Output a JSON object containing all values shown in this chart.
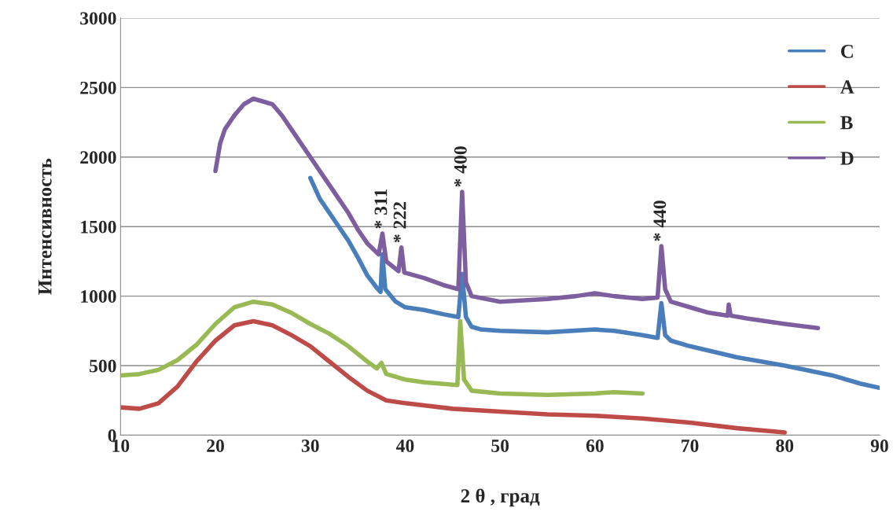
{
  "chart_data": {
    "type": "line",
    "xlabel": "2 θ , град",
    "ylabel": "Интенсивность",
    "xlim": [
      10,
      90
    ],
    "xticks": [
      10,
      20,
      30,
      40,
      50,
      60,
      70,
      80,
      90
    ],
    "ylim": [
      0,
      3000
    ],
    "yticks": [
      0,
      500,
      1000,
      1500,
      2000,
      2500,
      3000
    ],
    "grid": "y",
    "legend": "top right",
    "marker": "none",
    "line_style": "solid",
    "series": [
      {
        "name": "C",
        "color": "#4a7ebb",
        "x": [
          30,
          31,
          32,
          33,
          34,
          35,
          36,
          37,
          37.4,
          37.6,
          37.9,
          39,
          40,
          42,
          44,
          45.6,
          46,
          46.4,
          47,
          48,
          50,
          55,
          60,
          62,
          65,
          66.6,
          67,
          67.4,
          68,
          70,
          75,
          80,
          85,
          88,
          90
        ],
        "values": [
          1850,
          1700,
          1600,
          1500,
          1400,
          1280,
          1150,
          1060,
          1030,
          1300,
          1050,
          960,
          920,
          900,
          870,
          850,
          1160,
          850,
          780,
          760,
          750,
          740,
          760,
          750,
          720,
          700,
          950,
          720,
          680,
          640,
          560,
          500,
          430,
          370,
          340
        ]
      },
      {
        "name": "A",
        "color": "#be4b48",
        "x": [
          10,
          12,
          14,
          16,
          18,
          20,
          22,
          24,
          26,
          28,
          30,
          32,
          34,
          36,
          38,
          40,
          45,
          50,
          55,
          60,
          65,
          70,
          75,
          80
        ],
        "values": [
          200,
          190,
          230,
          350,
          530,
          680,
          790,
          820,
          790,
          720,
          640,
          530,
          420,
          320,
          250,
          230,
          190,
          170,
          150,
          140,
          120,
          90,
          50,
          20
        ]
      },
      {
        "name": "B",
        "color": "#98b954",
        "x": [
          10,
          12,
          14,
          16,
          18,
          20,
          22,
          24,
          26,
          28,
          30,
          32,
          34,
          36,
          37,
          37.5,
          38,
          40,
          42,
          45.5,
          45.8,
          46.2,
          47,
          50,
          55,
          60,
          62,
          65
        ],
        "values": [
          430,
          440,
          470,
          540,
          650,
          800,
          920,
          960,
          940,
          880,
          800,
          730,
          640,
          530,
          480,
          520,
          440,
          400,
          380,
          360,
          820,
          400,
          320,
          300,
          290,
          300,
          310,
          300
        ]
      },
      {
        "name": "D",
        "color": "#7d5fa0",
        "x": [
          20,
          20.5,
          21,
          22,
          23,
          24,
          25,
          26,
          27,
          28,
          29,
          30,
          31,
          32,
          33,
          34,
          35,
          36,
          37.2,
          37.6,
          38,
          39.3,
          39.6,
          39.9,
          42,
          44,
          45.6,
          46,
          46.4,
          47,
          50,
          55,
          58,
          60,
          62,
          65,
          66.6,
          67,
          67.4,
          68,
          70,
          72,
          74,
          74.1,
          74.3,
          76,
          80,
          83.5
        ],
        "values": [
          1900,
          2100,
          2200,
          2300,
          2380,
          2420,
          2400,
          2380,
          2300,
          2200,
          2100,
          2000,
          1900,
          1800,
          1700,
          1600,
          1480,
          1380,
          1300,
          1450,
          1250,
          1180,
          1350,
          1170,
          1130,
          1080,
          1050,
          1750,
          1100,
          1000,
          960,
          980,
          1000,
          1020,
          1000,
          980,
          990,
          1360,
          1050,
          960,
          920,
          880,
          860,
          940,
          860,
          840,
          800,
          770
        ]
      }
    ],
    "annotations": [
      {
        "text": "* 311",
        "x": 37.6,
        "y": 1450
      },
      {
        "text": "* 222",
        "x": 39.6,
        "y": 1350
      },
      {
        "text": "* 400",
        "x": 46,
        "y": 1750
      },
      {
        "text": "* 440",
        "x": 67,
        "y": 1360
      }
    ]
  }
}
